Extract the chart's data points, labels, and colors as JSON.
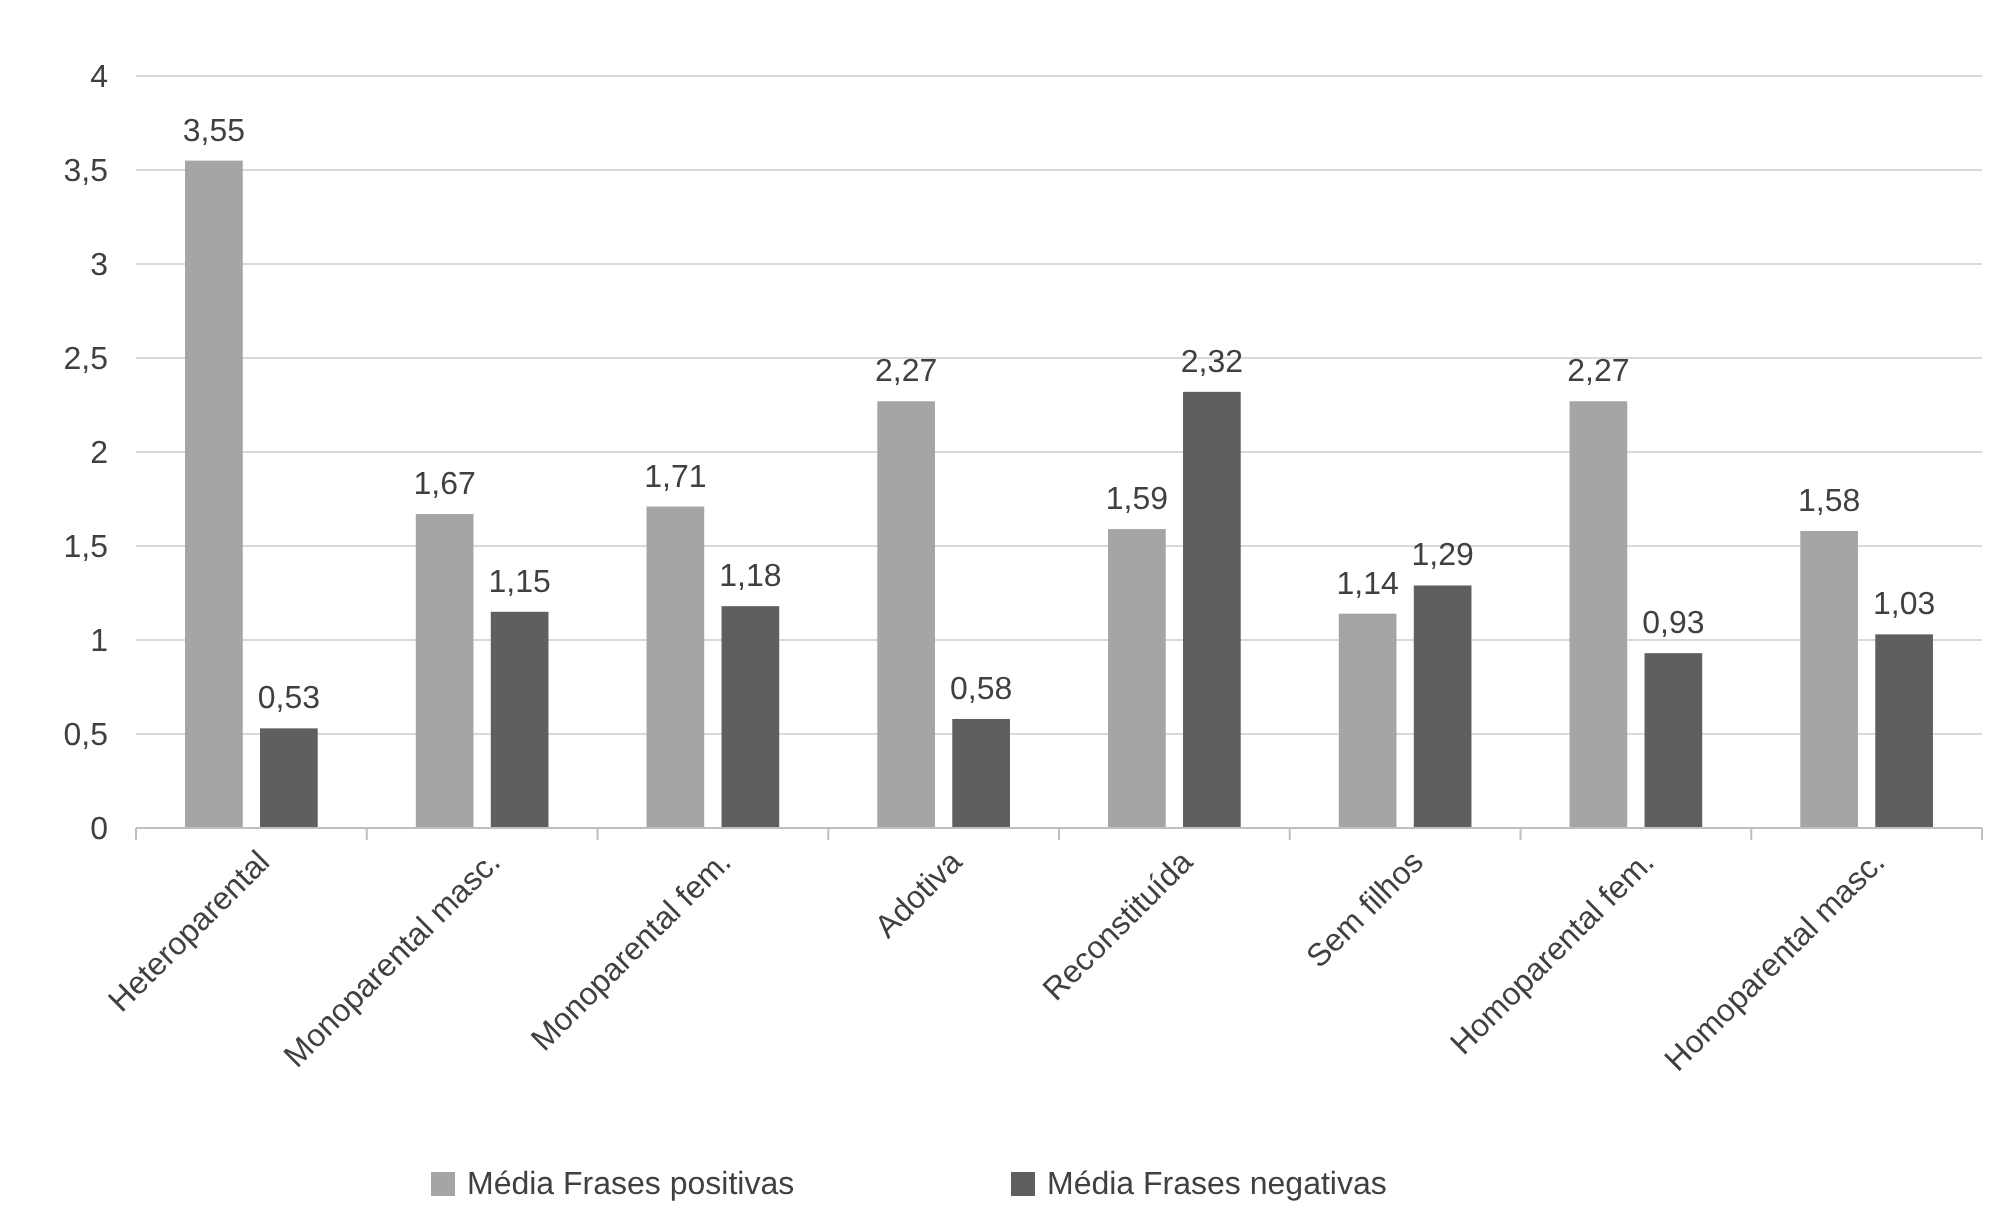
{
  "chart_data": {
    "type": "bar",
    "categories": [
      "Heteroparental",
      "Monoparental masc.",
      "Monoparental fem.",
      "Adotiva",
      "Reconstituída",
      "Sem filhos",
      "Homoparental fem.",
      "Homoparental masc."
    ],
    "series": [
      {
        "name": "Média Frases positivas",
        "color": "#a5a5a5",
        "values": [
          3.55,
          1.67,
          1.71,
          2.27,
          1.59,
          1.14,
          2.27,
          1.58
        ],
        "value_labels": [
          "3,55",
          "1,67",
          "1,71",
          "2,27",
          "1,59",
          "1,14",
          "2,27",
          "1,58"
        ]
      },
      {
        "name": "Média Frases negativas",
        "color": "#5f5f5f",
        "values": [
          0.53,
          1.15,
          1.18,
          0.58,
          2.32,
          1.29,
          0.93,
          1.03
        ],
        "value_labels": [
          "0,53",
          "1,15",
          "1,18",
          "0,58",
          "2,32",
          "1,29",
          "0,93",
          "1,03"
        ]
      }
    ],
    "ylim": [
      0,
      4
    ],
    "yticks": [
      0,
      {
        "value": 0.5,
        "label": "0,5"
      },
      1,
      {
        "value": 1.5,
        "label": "1,5"
      },
      2,
      {
        "value": 2.5,
        "label": "2,5"
      },
      3,
      {
        "value": 3.5,
        "label": "3,5"
      },
      4
    ],
    "grid": "y",
    "legend": "bottom"
  }
}
